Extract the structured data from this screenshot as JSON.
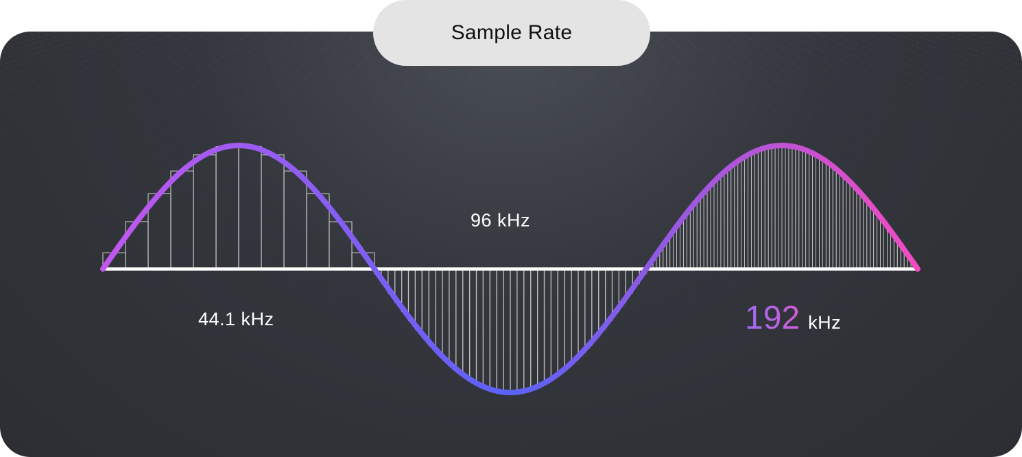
{
  "title": "Sample Rate",
  "labels": {
    "rate_low": "44.1 kHz",
    "rate_mid": "96 kHz",
    "rate_high_value": "192",
    "rate_high_unit": "kHz"
  },
  "colors": {
    "wave_start": "#c257ee",
    "wave_trough": "#5a62f8",
    "wave_end": "#f24bc2",
    "sample_stroke": "#bfbfbf",
    "baseline": "#ffffff",
    "pill_bg": "#e4e4e4"
  },
  "samples": {
    "low_segment_bars": 12,
    "mid_segment_bars": 40,
    "high_segment_bars": 80
  }
}
